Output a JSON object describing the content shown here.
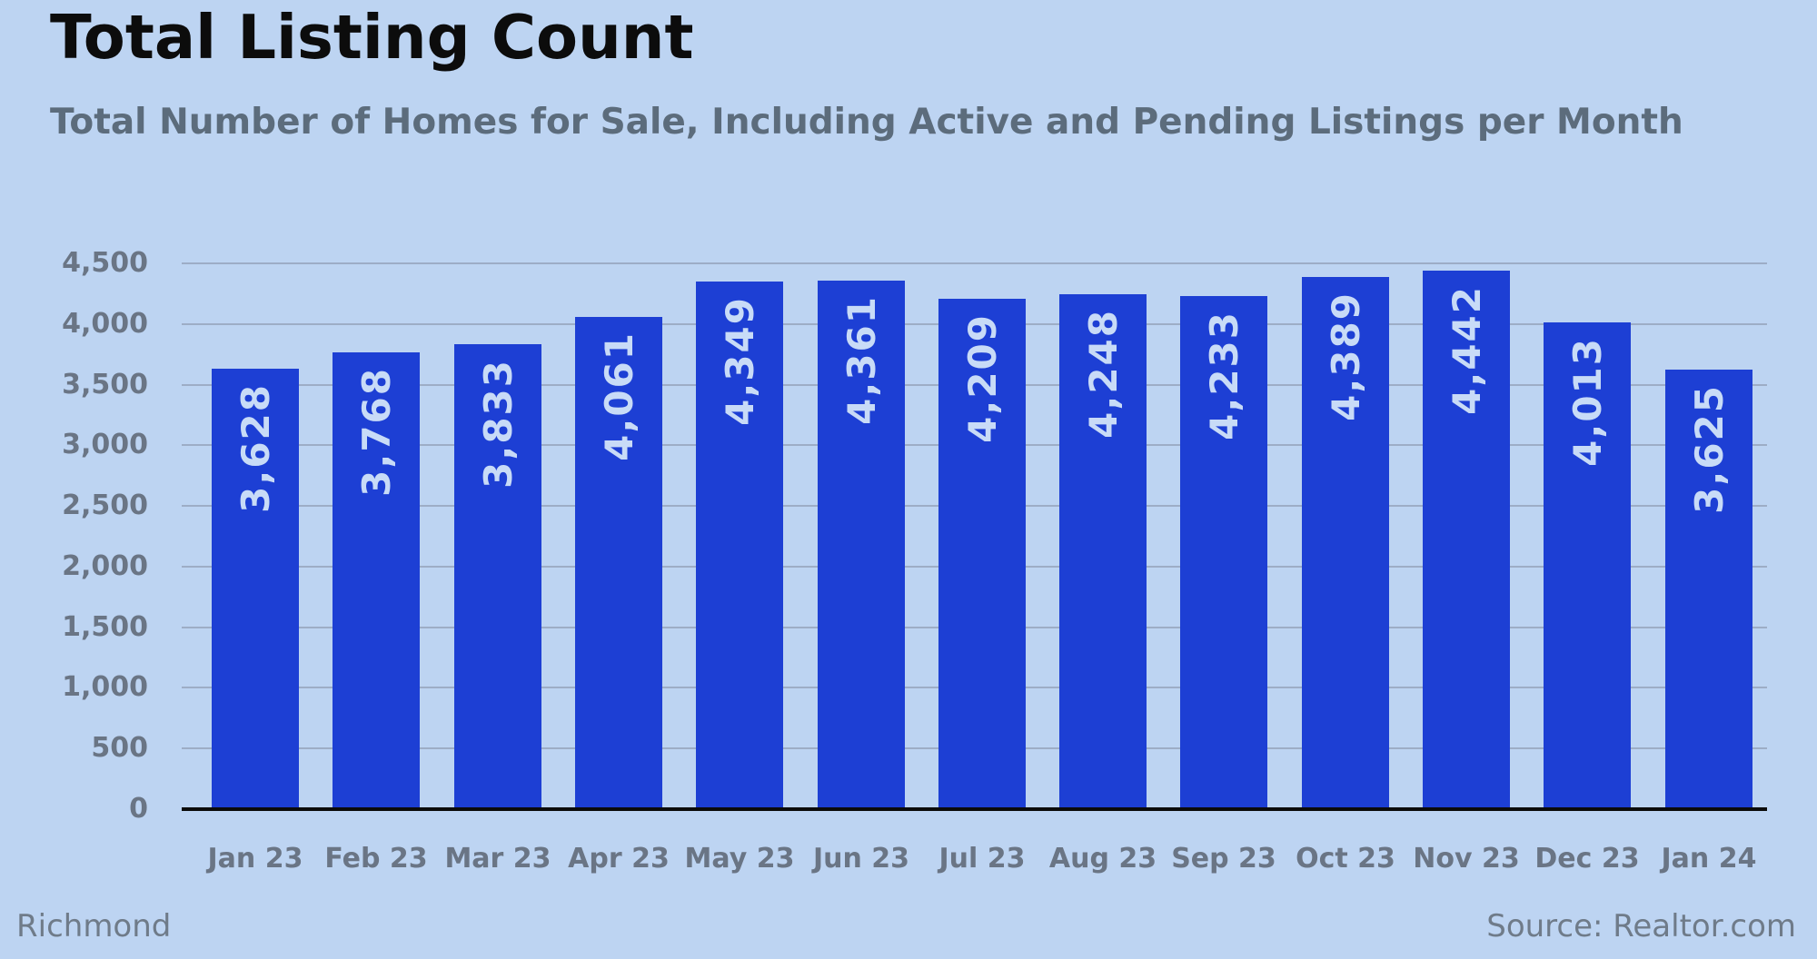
{
  "chart_data": {
    "type": "bar",
    "title": "Total Listing Count",
    "subtitle": "Total Number of Homes for Sale, Including Active and Pending Listings per Month",
    "categories": [
      "Jan 23",
      "Feb 23",
      "Mar 23",
      "Apr 23",
      "May 23",
      "Jun 23",
      "Jul 23",
      "Aug 23",
      "Sep 23",
      "Oct 23",
      "Nov 23",
      "Dec 23",
      "Jan 24"
    ],
    "values": [
      3628,
      3768,
      3833,
      4061,
      4349,
      4361,
      4209,
      4248,
      4233,
      4389,
      4442,
      4013,
      3625
    ],
    "value_labels": [
      "3,628",
      "3,768",
      "3,833",
      "4,061",
      "4,349",
      "4,361",
      "4,209",
      "4,248",
      "4,233",
      "4,389",
      "4,442",
      "4,013",
      "3,625"
    ],
    "xlabel": "",
    "ylabel": "",
    "ylim": [
      0,
      4500
    ],
    "y_ticks": [
      0,
      500,
      1000,
      1500,
      2000,
      2500,
      3000,
      3500,
      4000,
      4500
    ],
    "y_tick_labels": [
      "0",
      "500",
      "1,000",
      "1,500",
      "2,000",
      "2,500",
      "3,000",
      "3,500",
      "4,000",
      "4,500"
    ],
    "grid": true,
    "legend": false,
    "colors": {
      "background": "#bdd4f2",
      "bar": "#1d3fd4",
      "bar_value_label": "#c8dbf7",
      "gridline": "#9dadc6",
      "axis_line": "#0b0b0b",
      "tick_label": "#6a7585"
    }
  },
  "footer": {
    "region": "Richmond",
    "source": "Source: Realtor.com"
  }
}
